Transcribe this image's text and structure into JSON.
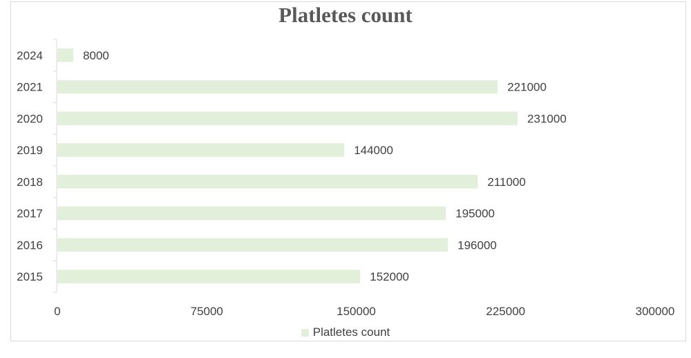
{
  "chart_data": {
    "type": "bar",
    "orientation": "horizontal",
    "title": "Platletes count",
    "categories": [
      "2024",
      "2021",
      "2020",
      "2019",
      "2018",
      "2017",
      "2016",
      "2015"
    ],
    "series": [
      {
        "name": "Platletes count",
        "values": [
          8000,
          221000,
          231000,
          144000,
          211000,
          195000,
          196000,
          152000
        ]
      }
    ],
    "data_labels": [
      "8000",
      "221000",
      "231000",
      "144000",
      "211000",
      "195000",
      "196000",
      "152000"
    ],
    "x_ticks": [
      "0",
      "75000",
      "150000",
      "225000",
      "300000"
    ],
    "xlim": [
      0,
      300000
    ],
    "xlabel": "",
    "ylabel": "",
    "grid": false,
    "legend_position": "bottom",
    "bar_color": "#e2efda"
  }
}
